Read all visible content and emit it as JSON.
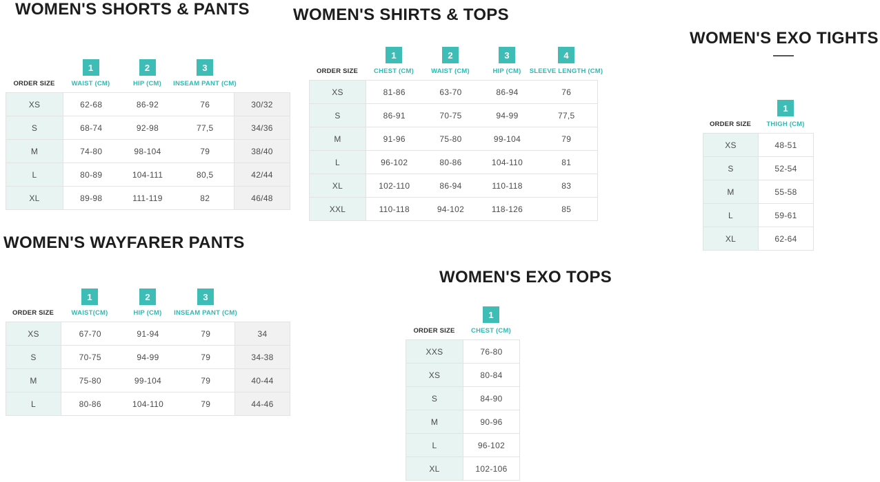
{
  "colors": {
    "accent_teal": "#3EBDB7",
    "teal_label_text": "#2FB9B2",
    "mint_row_background": "#E7F4F2",
    "gray_column_background": "#F1F1F1",
    "table_border": "#E3E3E3",
    "title_text": "#1D1D1D",
    "cell_text": "#4B4B4B"
  },
  "sections": [
    {
      "title": "WOMEN'S SHORTS & PANTS",
      "order_size_label": "ORDER SIZE",
      "columns": [
        {
          "num": "1",
          "label": "WAIST (CM)"
        },
        {
          "num": "2",
          "label": "HIP (CM)"
        },
        {
          "num": "3",
          "label": "INSEAM PANT (CM)"
        }
      ],
      "has_extra_column": true,
      "rows": [
        {
          "size": "XS",
          "values": [
            "62-68",
            "86-92",
            "76"
          ],
          "extra": "30/32"
        },
        {
          "size": "S",
          "values": [
            "68-74",
            "92-98",
            "77,5"
          ],
          "extra": "34/36"
        },
        {
          "size": "M",
          "values": [
            "74-80",
            "98-104",
            "79"
          ],
          "extra": "38/40"
        },
        {
          "size": "L",
          "values": [
            "80-89",
            "104-111",
            "80,5"
          ],
          "extra": "42/44"
        },
        {
          "size": "XL",
          "values": [
            "89-98",
            "111-119",
            "82"
          ],
          "extra": "46/48"
        }
      ]
    },
    {
      "title": "WOMEN'S SHIRTS & TOPS",
      "order_size_label": "ORDER SIZE",
      "columns": [
        {
          "num": "1",
          "label": "CHEST (CM)"
        },
        {
          "num": "2",
          "label": "WAIST (CM)"
        },
        {
          "num": "3",
          "label": "HIP (CM)"
        },
        {
          "num": "4",
          "label": "SLEEVE LENGTH (CM)"
        }
      ],
      "has_extra_column": false,
      "rows": [
        {
          "size": "XS",
          "values": [
            "81-86",
            "63-70",
            "86-94",
            "76"
          ]
        },
        {
          "size": "S",
          "values": [
            "86-91",
            "70-75",
            "94-99",
            "77,5"
          ]
        },
        {
          "size": "M",
          "values": [
            "91-96",
            "75-80",
            "99-104",
            "79"
          ]
        },
        {
          "size": "L",
          "values": [
            "96-102",
            "80-86",
            "104-110",
            "81"
          ]
        },
        {
          "size": "XL",
          "values": [
            "102-110",
            "86-94",
            "110-118",
            "83"
          ]
        },
        {
          "size": "XXL",
          "values": [
            "110-118",
            "94-102",
            "118-126",
            "85"
          ]
        }
      ]
    },
    {
      "title": "WOMEN'S EXO TIGHTS",
      "order_size_label": "ORDER SIZE",
      "columns": [
        {
          "num": "1",
          "label": "THIGH (CM)"
        }
      ],
      "has_extra_column": false,
      "rows": [
        {
          "size": "XS",
          "values": [
            "48-51"
          ]
        },
        {
          "size": "S",
          "values": [
            "52-54"
          ]
        },
        {
          "size": "M",
          "values": [
            "55-58"
          ]
        },
        {
          "size": "L",
          "values": [
            "59-61"
          ]
        },
        {
          "size": "XL",
          "values": [
            "62-64"
          ]
        }
      ]
    },
    {
      "title": "WOMEN'S WAYFARER PANTS",
      "order_size_label": "ORDER SIZE",
      "columns": [
        {
          "num": "1",
          "label": "WAIST(CM)"
        },
        {
          "num": "2",
          "label": "HIP (CM)"
        },
        {
          "num": "3",
          "label": "INSEAM PANT (CM)"
        }
      ],
      "has_extra_column": true,
      "rows": [
        {
          "size": "XS",
          "values": [
            "67-70",
            "91-94",
            "79"
          ],
          "extra": "34"
        },
        {
          "size": "S",
          "values": [
            "70-75",
            "94-99",
            "79"
          ],
          "extra": "34-38"
        },
        {
          "size": "M",
          "values": [
            "75-80",
            "99-104",
            "79"
          ],
          "extra": "40-44"
        },
        {
          "size": "L",
          "values": [
            "80-86",
            "104-110",
            "79"
          ],
          "extra": "44-46"
        }
      ]
    },
    {
      "title": "WOMEN'S EXO TOPS",
      "order_size_label": "ORDER SIZE",
      "columns": [
        {
          "num": "1",
          "label": "CHEST (CM)"
        }
      ],
      "has_extra_column": false,
      "rows": [
        {
          "size": "XXS",
          "values": [
            "76-80"
          ]
        },
        {
          "size": "XS",
          "values": [
            "80-84"
          ]
        },
        {
          "size": "S",
          "values": [
            "84-90"
          ]
        },
        {
          "size": "M",
          "values": [
            "90-96"
          ]
        },
        {
          "size": "L",
          "values": [
            "96-102"
          ]
        },
        {
          "size": "XL",
          "values": [
            "102-106"
          ]
        }
      ]
    }
  ]
}
